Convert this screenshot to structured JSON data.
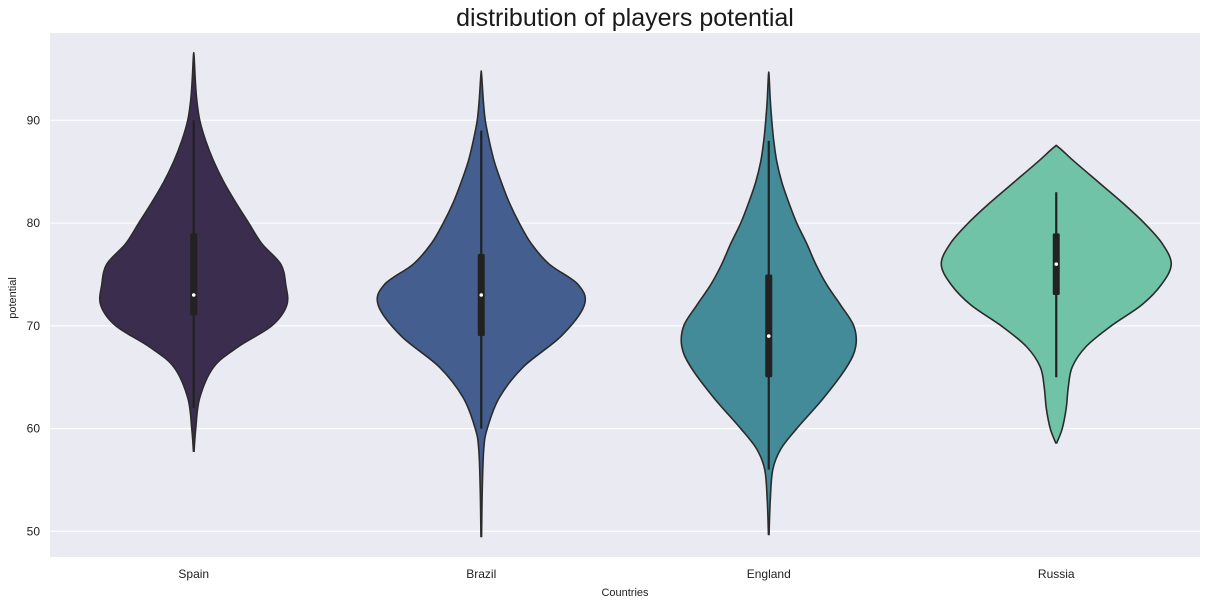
{
  "chart_data": {
    "type": "violin",
    "title": "distribution of players potential",
    "xlabel": "Countries",
    "ylabel": "potential",
    "categories": [
      "Spain",
      "Brazil",
      "England",
      "Russia"
    ],
    "ylim": [
      47.5,
      98.5
    ],
    "yticks": [
      50,
      60,
      70,
      80,
      90
    ],
    "grid": true,
    "colors": {
      "Spain": "#3b2d4e",
      "Brazil": "#445f8f",
      "England": "#438b98",
      "Russia": "#70c3a7",
      "background": "#eaeaf2",
      "gridline": "#ffffff",
      "outline": "#2b2b2b"
    },
    "violins": [
      {
        "category": "Spain",
        "min": 57.8,
        "max": 96.3,
        "q1": 71,
        "median": 73,
        "q3": 79,
        "whisker_low": 62,
        "whisker_high": 90,
        "density_half_width": [
          [
            57.8,
            0.3
          ],
          [
            60,
            2
          ],
          [
            63,
            6
          ],
          [
            66,
            20
          ],
          [
            68,
            45
          ],
          [
            70,
            78
          ],
          [
            72,
            93
          ],
          [
            74,
            92
          ],
          [
            76,
            87
          ],
          [
            78,
            68
          ],
          [
            80,
            55
          ],
          [
            82,
            42
          ],
          [
            84,
            30
          ],
          [
            86,
            20
          ],
          [
            88,
            12
          ],
          [
            90,
            6
          ],
          [
            92,
            3
          ],
          [
            94,
            1.5
          ],
          [
            96.3,
            0.3
          ]
        ]
      },
      {
        "category": "Brazil",
        "min": 49.5,
        "max": 94.5,
        "q1": 69,
        "median": 73,
        "q3": 77,
        "whisker_low": 60,
        "whisker_high": 89,
        "density_half_width": [
          [
            49.5,
            0.3
          ],
          [
            54,
            1
          ],
          [
            58,
            2.5
          ],
          [
            60,
            6
          ],
          [
            63,
            18
          ],
          [
            66,
            42
          ],
          [
            69,
            80
          ],
          [
            72,
            103
          ],
          [
            74,
            97
          ],
          [
            76,
            68
          ],
          [
            78,
            50
          ],
          [
            80,
            38
          ],
          [
            82,
            28
          ],
          [
            84,
            20
          ],
          [
            86,
            13
          ],
          [
            88,
            8
          ],
          [
            90,
            4
          ],
          [
            92,
            2
          ],
          [
            94.5,
            0.3
          ]
        ]
      },
      {
        "category": "England",
        "min": 49.7,
        "max": 94.4,
        "q1": 65,
        "median": 69,
        "q3": 75,
        "whisker_low": 56,
        "whisker_high": 88,
        "density_half_width": [
          [
            49.7,
            0.3
          ],
          [
            53,
            1.5
          ],
          [
            56,
            4
          ],
          [
            58,
            12
          ],
          [
            60,
            28
          ],
          [
            63,
            55
          ],
          [
            66,
            78
          ],
          [
            68,
            87
          ],
          [
            70,
            85
          ],
          [
            72,
            72
          ],
          [
            74,
            58
          ],
          [
            76,
            47
          ],
          [
            78,
            38
          ],
          [
            80,
            28
          ],
          [
            82,
            20
          ],
          [
            84,
            13
          ],
          [
            86,
            8
          ],
          [
            88,
            5
          ],
          [
            90,
            3
          ],
          [
            92,
            1.5
          ],
          [
            94.4,
            0.3
          ]
        ]
      },
      {
        "category": "Russia",
        "min": 58.6,
        "max": 87.4,
        "q1": 73,
        "median": 76,
        "q3": 79,
        "whisker_low": 65,
        "whisker_high": 83,
        "density_half_width": [
          [
            58.6,
            0.5
          ],
          [
            60,
            6
          ],
          [
            62,
            10
          ],
          [
            64,
            12
          ],
          [
            66,
            16
          ],
          [
            68,
            30
          ],
          [
            70,
            55
          ],
          [
            72,
            85
          ],
          [
            74,
            105
          ],
          [
            76,
            115
          ],
          [
            78,
            106
          ],
          [
            80,
            88
          ],
          [
            82,
            66
          ],
          [
            84,
            42
          ],
          [
            86,
            18
          ],
          [
            87.4,
            2
          ]
        ]
      }
    ]
  }
}
